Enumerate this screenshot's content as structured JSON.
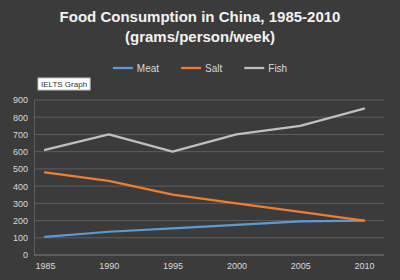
{
  "chart_data": {
    "type": "line",
    "title": "Food Consumption in China, 1985-2010",
    "subtitle": "(grams/person/week)",
    "annotations": [
      "IELTS Graph"
    ],
    "categories": [
      "1985",
      "1990",
      "1995",
      "2000",
      "2005",
      "2010"
    ],
    "series": [
      {
        "name": "Meat",
        "color": "#5b9bd5",
        "values": [
          105,
          135,
          155,
          175,
          195,
          200
        ]
      },
      {
        "name": "Salt",
        "color": "#ed7d31",
        "values": [
          480,
          430,
          350,
          300,
          250,
          200
        ]
      },
      {
        "name": "Fish",
        "color": "#bfbfbf",
        "values": [
          610,
          700,
          600,
          700,
          750,
          850
        ]
      }
    ],
    "ylim": [
      0,
      900
    ],
    "yticks": [
      0,
      100,
      200,
      300,
      400,
      500,
      600,
      700,
      800,
      900
    ],
    "grid": true,
    "legend": "top"
  }
}
